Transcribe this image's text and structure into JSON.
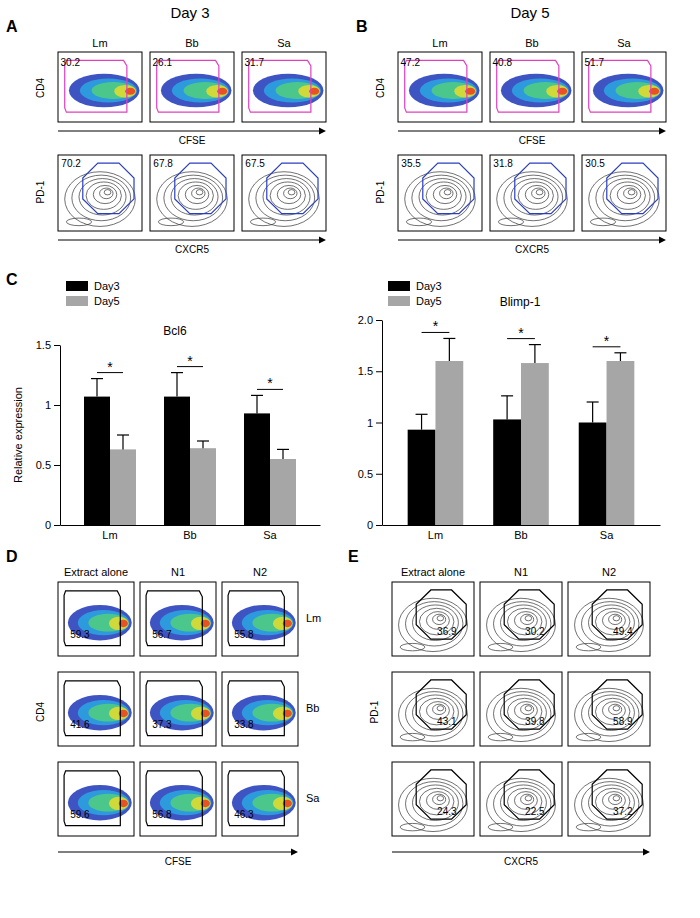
{
  "figure": {
    "day_panels": [
      {
        "letter": "A",
        "title": "Day 3",
        "groups": [
          "Lm",
          "Bb",
          "Sa"
        ],
        "cfse": {
          "y_label": "CD4",
          "x_label": "CFSE",
          "gates": [
            30.2,
            26.1,
            31.7
          ]
        },
        "pd1": {
          "y_label": "PD-1",
          "x_label": "CXCR5",
          "gates": [
            70.2,
            67.8,
            67.5
          ]
        }
      },
      {
        "letter": "B",
        "title": "Day 5",
        "groups": [
          "Lm",
          "Bb",
          "Sa"
        ],
        "cfse": {
          "y_label": "CD4",
          "x_label": "CFSE",
          "gates": [
            47.2,
            40.8,
            51.7
          ]
        },
        "pd1": {
          "y_label": "PD-1",
          "x_label": "CXCR5",
          "gates": [
            35.5,
            31.8,
            30.5
          ]
        }
      }
    ],
    "chart_letter": "C",
    "treatment_panels": [
      {
        "letter": "D",
        "columns": [
          "Extract alone",
          "N1",
          "N2"
        ],
        "rows": [
          "Lm",
          "Bb",
          "Sa"
        ],
        "y_label": "CD4",
        "x_label": "CFSE",
        "gates": [
          [
            59.3,
            56.7,
            55.8
          ],
          [
            41.6,
            37.3,
            33.8
          ],
          [
            59.6,
            56.8,
            46.3
          ]
        ]
      },
      {
        "letter": "E",
        "columns": [
          "Extract alone",
          "N1",
          "N2"
        ],
        "y_label": "PD-1",
        "x_label": "CXCR5",
        "gates": [
          [
            36.9,
            30.2,
            49.4
          ],
          [
            43.1,
            39.8,
            58.9
          ],
          [
            24.3,
            22.5,
            37.2
          ]
        ]
      }
    ]
  },
  "chart_data": [
    {
      "type": "bar",
      "title": "Bcl6",
      "y_label": "Relative expression",
      "categories": [
        "Lm",
        "Bb",
        "Sa"
      ],
      "series": [
        {
          "name": "Day3",
          "color": "#000000",
          "values": [
            1.07,
            1.07,
            0.93
          ],
          "errors": [
            0.15,
            0.2,
            0.15
          ]
        },
        {
          "name": "Day5",
          "color": "#a6a6a6",
          "values": [
            0.63,
            0.64,
            0.55
          ],
          "errors": [
            0.12,
            0.06,
            0.08
          ]
        }
      ],
      "significance": [
        "*",
        "*",
        "*"
      ],
      "ylim": [
        0,
        1.5
      ],
      "yticks": [
        0,
        0.5,
        1,
        1.5
      ],
      "legend": "top-left"
    },
    {
      "type": "bar",
      "title": "Blimp-1",
      "categories": [
        "Lm",
        "Bb",
        "Sa"
      ],
      "series": [
        {
          "name": "Day3",
          "color": "#000000",
          "values": [
            0.93,
            1.03,
            1.0
          ],
          "errors": [
            0.15,
            0.23,
            0.2
          ]
        },
        {
          "name": "Day5",
          "color": "#a6a6a6",
          "values": [
            1.6,
            1.58,
            1.6
          ],
          "errors": [
            0.22,
            0.18,
            0.08
          ]
        }
      ],
      "significance": [
        "*",
        "*",
        "*"
      ],
      "ylim": [
        0,
        2
      ],
      "yticks": [
        0,
        0.5,
        1,
        1.5,
        {
          "value": 2,
          "label": "2.0"
        }
      ],
      "legend": "top-left"
    }
  ]
}
